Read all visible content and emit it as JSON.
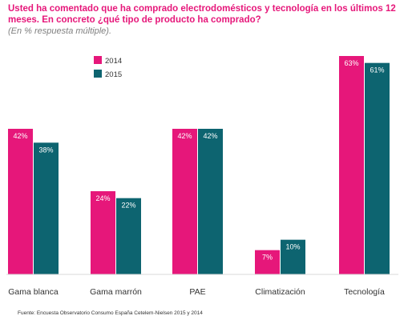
{
  "title": "Usted ha comentado que ha comprado electrodomésticos y tecnología  en los últimos 12 meses. En concreto ¿qué tipo de producto ha comprado?",
  "subtitle": "(En % respuesta múltiple).",
  "source": "Fuente: Encuesta Observatorio Consumo España Cetelem-Nielsen 2015 y 2014",
  "colors": {
    "s2014": "#e6177a",
    "s2015": "#0d6470"
  },
  "chart_data": {
    "type": "bar",
    "categories": [
      "Gama blanca",
      "Gama marrón",
      "PAE",
      "Climatización",
      "Tecnología"
    ],
    "series": [
      {
        "name": "2014",
        "values": [
          42,
          24,
          42,
          7,
          63
        ],
        "labels": [
          "42%",
          "24%",
          "42%",
          "7%",
          "63%"
        ]
      },
      {
        "name": "2015",
        "values": [
          38,
          22,
          42,
          10,
          61
        ],
        "labels": [
          "38%",
          "22%",
          "42%",
          "10%",
          "61%"
        ]
      }
    ],
    "ylim": [
      0,
      63
    ],
    "grid": false,
    "legend": "top-left"
  }
}
